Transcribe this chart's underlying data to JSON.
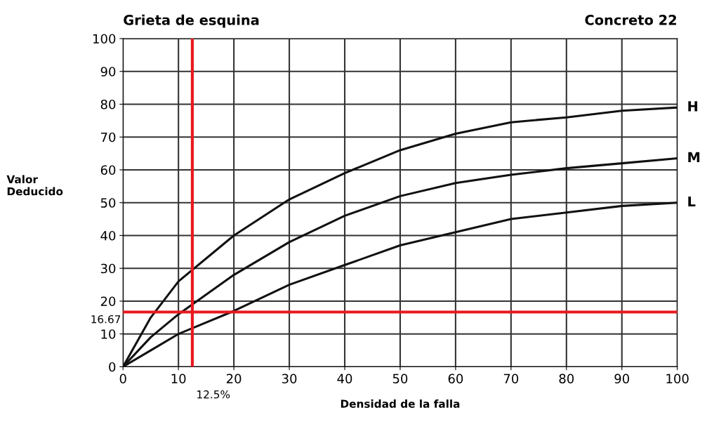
{
  "chart_data": {
    "type": "line",
    "title": "Grieta de esquina",
    "subtitle": "Concreto 22",
    "xlabel": "Densidad de la falla",
    "ylabel": "Valor\nDeducido",
    "x": [
      0,
      5,
      10,
      20,
      30,
      40,
      50,
      60,
      70,
      80,
      90,
      100
    ],
    "series": [
      {
        "name": "H",
        "color": "#111111",
        "values": [
          0,
          15,
          26,
          40,
          51,
          59,
          66,
          71,
          74.5,
          76,
          78,
          79
        ]
      },
      {
        "name": "M",
        "color": "#111111",
        "values": [
          0,
          9,
          16,
          28,
          38,
          46,
          52,
          56,
          58.5,
          60.5,
          62,
          63.5
        ]
      },
      {
        "name": "L",
        "color": "#111111",
        "values": [
          0,
          5,
          10,
          17,
          25,
          31,
          37,
          41,
          45,
          47,
          49,
          50
        ]
      }
    ],
    "xlim": [
      0,
      100
    ],
    "ylim": [
      0,
      100
    ],
    "xticks": [
      0,
      10,
      20,
      30,
      40,
      50,
      60,
      70,
      80,
      90,
      100
    ],
    "yticks": [
      0,
      10,
      20,
      30,
      40,
      50,
      60,
      70,
      80,
      90,
      100
    ],
    "grid": true,
    "marker": "none",
    "line_style": "solid",
    "ref_lines": [
      {
        "axis": "x",
        "value": 12.5,
        "label": "12.5%",
        "color": "#e8191f"
      },
      {
        "axis": "y",
        "value": 16.67,
        "label": "16.67",
        "color": "#e8191f"
      }
    ]
  }
}
